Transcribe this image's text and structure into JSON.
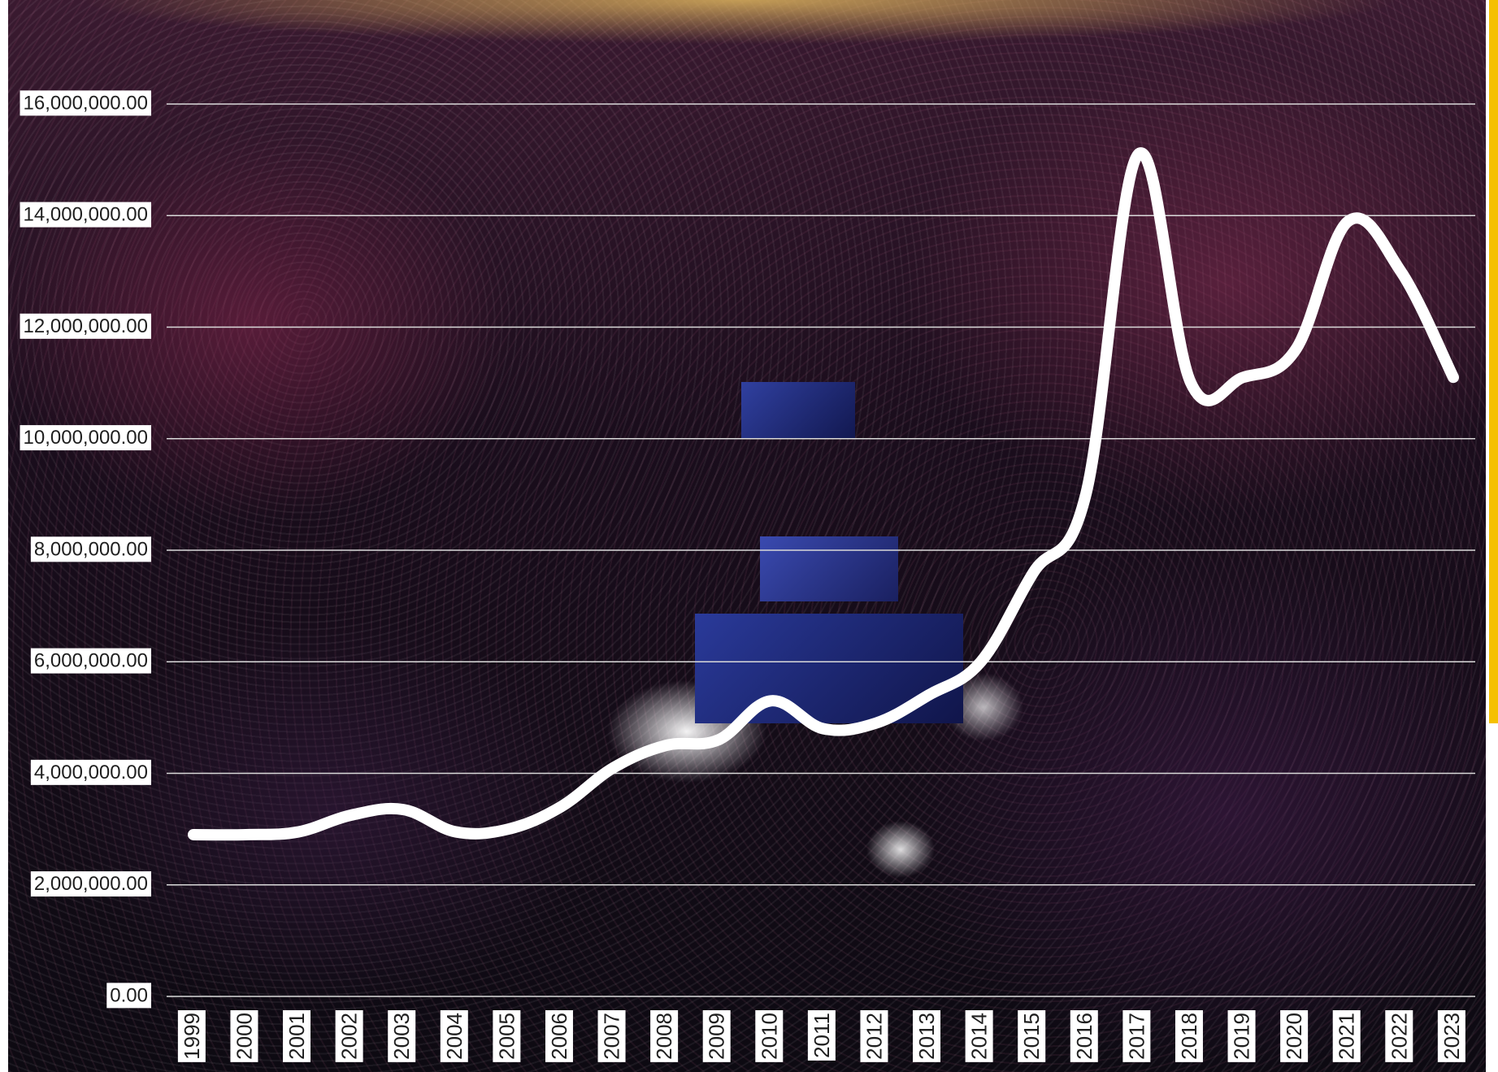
{
  "colors": {
    "line": "#ffffff",
    "gridline": "#d9d9d9",
    "label_background": "#ffffff",
    "accent_bar": "#f5c000"
  },
  "chart_data": {
    "type": "line",
    "title": "",
    "xlabel": "",
    "ylabel": "",
    "ylim": [
      0,
      16000000
    ],
    "y_ticks": [
      0,
      2000000,
      4000000,
      6000000,
      8000000,
      10000000,
      12000000,
      14000000,
      16000000
    ],
    "y_tick_labels": [
      "0.00",
      "2,000,000.00",
      "4,000,000.00",
      "6,000,000.00",
      "8,000,000.00",
      "10,000,000.00",
      "12,000,000.00",
      "14,000,000.00",
      "16,000,000.00"
    ],
    "categories": [
      "1999",
      "2000",
      "2001",
      "2002",
      "2003",
      "2004",
      "2005",
      "2006",
      "2007",
      "2008",
      "2009",
      "2010",
      "2011",
      "2012",
      "2013",
      "2014",
      "2015",
      "2016",
      "2017",
      "2018",
      "2019",
      "2020",
      "2021",
      "2022",
      "2023"
    ],
    "series": [
      {
        "values": [
          2900000,
          2900000,
          2950000,
          3250000,
          3350000,
          2950000,
          3000000,
          3400000,
          4100000,
          4500000,
          4600000,
          5300000,
          4800000,
          4900000,
          5400000,
          6000000,
          7600000,
          9000000,
          15100000,
          11000000,
          11100000,
          11600000,
          13900000,
          13000000,
          11100000
        ]
      }
    ],
    "grid": true,
    "legend": "none",
    "background": "photo of aerial concert crowd at night"
  }
}
